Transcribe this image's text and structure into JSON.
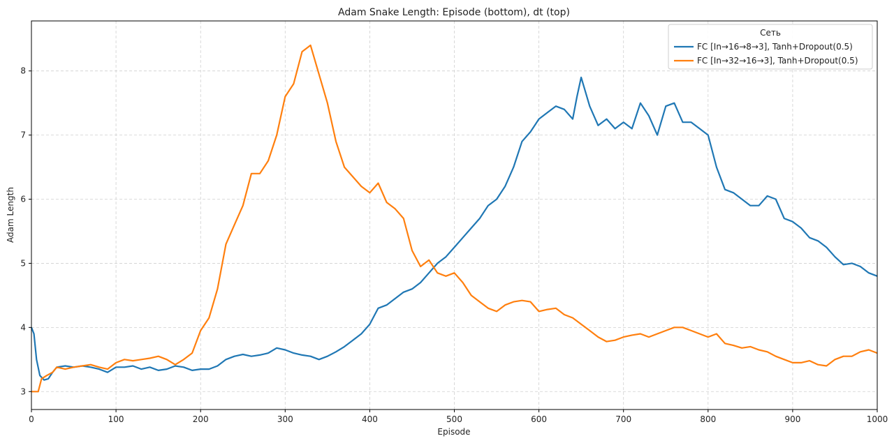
{
  "chart_data": {
    "type": "line",
    "title": "Adam Snake Length: Episode (bottom), dt (top)",
    "xlabel": "Episode",
    "ylabel": "Adam Length",
    "xlim": [
      0,
      1000
    ],
    "ylim": [
      2.72,
      8.78
    ],
    "xticks": [
      0,
      100,
      200,
      300,
      400,
      500,
      600,
      700,
      800,
      900,
      1000
    ],
    "yticks": [
      3,
      4,
      5,
      6,
      7,
      8
    ],
    "grid": true,
    "legend": {
      "title": "Сеть",
      "placement": "top-right"
    },
    "series": [
      {
        "name": "FC [In→16→8→3], Tanh+Dropout(0.5)",
        "color": "#1f77b4",
        "x": [
          0,
          3,
          6,
          10,
          15,
          20,
          25,
          30,
          40,
          50,
          60,
          70,
          80,
          90,
          100,
          110,
          120,
          130,
          140,
          150,
          160,
          170,
          180,
          190,
          200,
          210,
          220,
          230,
          240,
          250,
          260,
          270,
          280,
          290,
          300,
          310,
          320,
          330,
          340,
          350,
          360,
          370,
          380,
          390,
          400,
          410,
          420,
          430,
          440,
          450,
          460,
          470,
          480,
          490,
          500,
          510,
          520,
          530,
          540,
          550,
          560,
          570,
          580,
          590,
          600,
          610,
          620,
          630,
          640,
          645,
          650,
          660,
          670,
          680,
          690,
          700,
          710,
          720,
          730,
          740,
          750,
          760,
          770,
          780,
          790,
          800,
          810,
          820,
          830,
          840,
          850,
          860,
          870,
          880,
          890,
          900,
          910,
          920,
          930,
          940,
          950,
          960,
          970,
          980,
          990,
          1000
        ],
        "y": [
          4.0,
          3.9,
          3.5,
          3.25,
          3.18,
          3.2,
          3.3,
          3.38,
          3.4,
          3.38,
          3.4,
          3.38,
          3.35,
          3.3,
          3.38,
          3.38,
          3.4,
          3.35,
          3.38,
          3.33,
          3.35,
          3.4,
          3.38,
          3.33,
          3.35,
          3.35,
          3.4,
          3.5,
          3.55,
          3.58,
          3.55,
          3.57,
          3.6,
          3.68,
          3.65,
          3.6,
          3.57,
          3.55,
          3.5,
          3.55,
          3.62,
          3.7,
          3.8,
          3.9,
          4.05,
          4.3,
          4.35,
          4.45,
          4.55,
          4.6,
          4.7,
          4.85,
          5.0,
          5.1,
          5.25,
          5.4,
          5.55,
          5.7,
          5.9,
          6.0,
          6.2,
          6.5,
          6.9,
          7.05,
          7.25,
          7.35,
          7.45,
          7.4,
          7.25,
          7.6,
          7.9,
          7.45,
          7.15,
          7.25,
          7.1,
          7.2,
          7.1,
          7.5,
          7.3,
          7.0,
          7.45,
          7.5,
          7.2,
          7.2,
          7.1,
          7.0,
          6.5,
          6.15,
          6.1,
          6.0,
          5.9,
          5.9,
          6.05,
          6.0,
          5.7,
          5.65,
          5.55,
          5.4,
          5.35,
          5.25,
          5.1,
          4.98,
          5.0,
          4.95,
          4.85,
          4.8
        ]
      },
      {
        "name": "FC [In→32→16→3], Tanh+Dropout(0.5)",
        "color": "#ff7f0e",
        "x": [
          0,
          8,
          12,
          18,
          25,
          30,
          40,
          50,
          60,
          70,
          80,
          90,
          100,
          110,
          120,
          130,
          140,
          150,
          160,
          170,
          180,
          190,
          200,
          210,
          220,
          230,
          240,
          250,
          260,
          270,
          280,
          290,
          300,
          310,
          320,
          330,
          340,
          350,
          360,
          370,
          380,
          390,
          400,
          410,
          420,
          430,
          440,
          450,
          460,
          470,
          480,
          490,
          500,
          510,
          520,
          530,
          540,
          550,
          560,
          570,
          580,
          590,
          600,
          610,
          620,
          630,
          640,
          650,
          660,
          670,
          680,
          690,
          700,
          710,
          720,
          730,
          740,
          750,
          760,
          770,
          780,
          790,
          800,
          810,
          820,
          830,
          840,
          850,
          860,
          870,
          880,
          890,
          900,
          910,
          920,
          930,
          940,
          950,
          960,
          970,
          980,
          990,
          1000
        ],
        "y": [
          3.0,
          3.0,
          3.2,
          3.25,
          3.3,
          3.38,
          3.35,
          3.38,
          3.4,
          3.42,
          3.38,
          3.35,
          3.45,
          3.5,
          3.48,
          3.5,
          3.52,
          3.55,
          3.5,
          3.42,
          3.5,
          3.6,
          3.95,
          4.15,
          4.6,
          5.3,
          5.6,
          5.9,
          6.4,
          6.4,
          6.6,
          7.0,
          7.6,
          7.8,
          8.3,
          8.4,
          7.95,
          7.5,
          6.9,
          6.5,
          6.35,
          6.2,
          6.1,
          6.25,
          5.95,
          5.85,
          5.7,
          5.2,
          4.95,
          5.05,
          4.85,
          4.8,
          4.85,
          4.7,
          4.5,
          4.4,
          4.3,
          4.25,
          4.35,
          4.4,
          4.42,
          4.4,
          4.25,
          4.28,
          4.3,
          4.2,
          4.15,
          4.05,
          3.95,
          3.85,
          3.78,
          3.8,
          3.85,
          3.88,
          3.9,
          3.85,
          3.9,
          3.95,
          4.0,
          4.0,
          3.95,
          3.9,
          3.85,
          3.9,
          3.75,
          3.72,
          3.68,
          3.7,
          3.65,
          3.62,
          3.55,
          3.5,
          3.45,
          3.45,
          3.48,
          3.42,
          3.4,
          3.5,
          3.55,
          3.55,
          3.62,
          3.65,
          3.6
        ]
      }
    ]
  }
}
